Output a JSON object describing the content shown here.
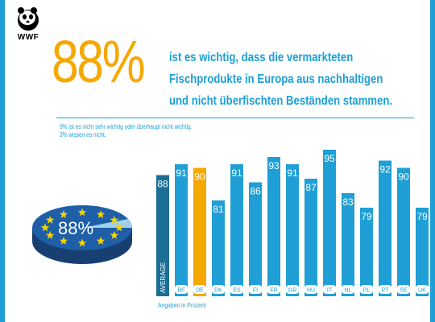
{
  "brand": {
    "logo_text": "WWF"
  },
  "headline": {
    "big_value": "88%",
    "lines": [
      "ist es wichtig, dass die vermarkteten",
      "Fischprodukte in Europa aus nachhaltigen",
      "und nicht überfischten Beständen stammen."
    ]
  },
  "notes": [
    "9% ist es nicht sehr wichtig oder überhaupt nicht wichtig.",
    "3% wissen es nicht."
  ],
  "pie_label": "88%",
  "source_label": "Angaben in Prozent",
  "colors": {
    "accent": "#f5a800",
    "bar": "#1f9fd5",
    "bar_average": "#1b6e95",
    "bar_highlight": "#f5a800",
    "eu_blue": "#1f5fa8",
    "eu_star": "#f5d400"
  },
  "chart_data": {
    "type": "bar",
    "categories": [
      "AVERAGE",
      "BE",
      "DE",
      "DK",
      "ES",
      "FI",
      "FR",
      "GR",
      "HU",
      "IT",
      "NL",
      "PL",
      "PT",
      "SE",
      "UK"
    ],
    "values": [
      88,
      91,
      90,
      81,
      91,
      86,
      93,
      91,
      87,
      95,
      83,
      79,
      92,
      90,
      79
    ],
    "highlight": "DE",
    "ylabel": "Angaben in Prozent"
  }
}
